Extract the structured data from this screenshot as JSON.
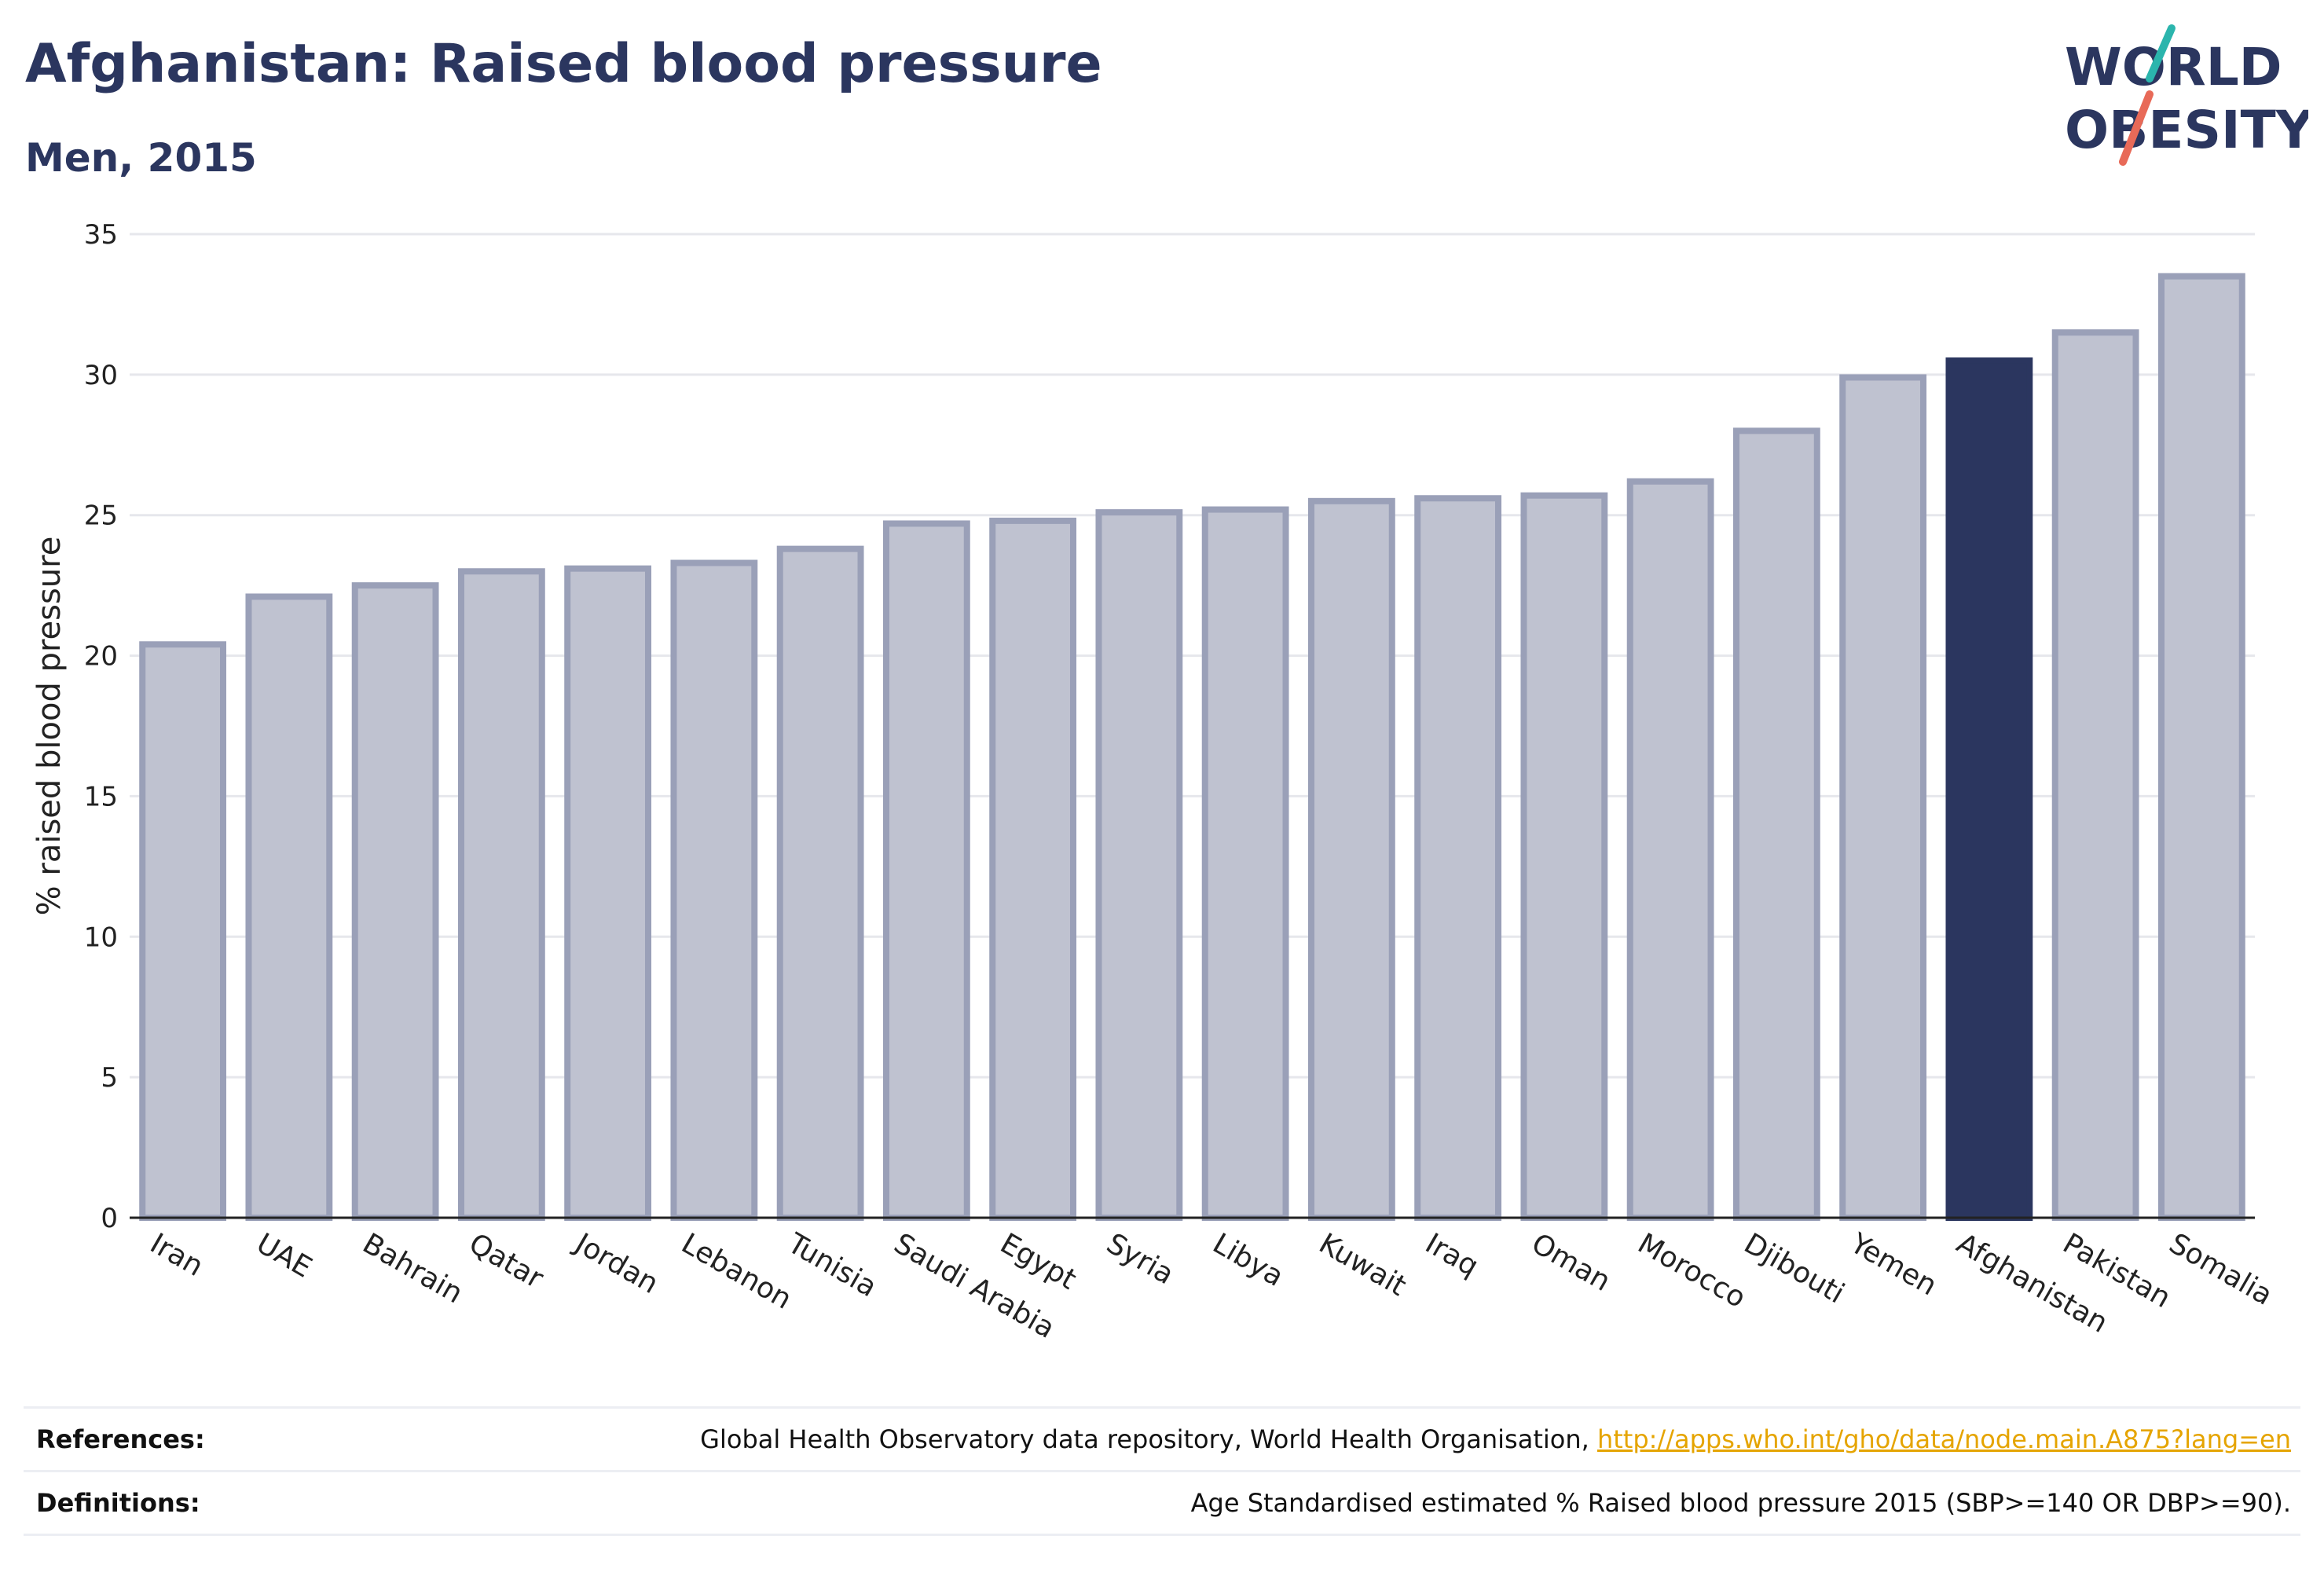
{
  "header": {
    "title": "Afghanistan: Raised blood pressure",
    "subtitle": "Men, 2015"
  },
  "logo": {
    "line1": "WORLD",
    "line2": "OBESITY",
    "accent_teal": "#2bb5ad",
    "accent_coral": "#e86a58",
    "text_color": "#2b365f"
  },
  "chart_data": {
    "type": "bar",
    "title": "Afghanistan: Raised blood pressure",
    "subtitle": "Men, 2015",
    "xlabel": "",
    "ylabel": "% raised blood pressure",
    "ylim": [
      0,
      35
    ],
    "yticks": [
      0,
      5,
      10,
      15,
      20,
      25,
      30,
      35
    ],
    "grid": true,
    "highlight": "Afghanistan",
    "colors": {
      "bar": "#bfc2d0",
      "bar_border": "#9aa0b8",
      "highlight": "#2b365f"
    },
    "categories": [
      "Iran",
      "UAE",
      "Bahrain",
      "Qatar",
      "Jordan",
      "Lebanon",
      "Tunisia",
      "Saudi Arabia",
      "Egypt",
      "Syria",
      "Libya",
      "Kuwait",
      "Iraq",
      "Oman",
      "Morocco",
      "Djibouti",
      "Yemen",
      "Afghanistan",
      "Pakistan",
      "Somalia"
    ],
    "values": [
      20.4,
      22.1,
      22.5,
      23.0,
      23.1,
      23.3,
      23.8,
      24.7,
      24.8,
      25.1,
      25.2,
      25.5,
      25.6,
      25.7,
      26.2,
      28.0,
      29.9,
      30.5,
      31.5,
      33.5
    ]
  },
  "footer": {
    "references_label": "References:",
    "references_text": "Global Health Observatory data repository, World Health Organisation,",
    "references_link": "http://apps.who.int/gho/data/node.main.A875?lang=en",
    "definitions_label": "Definitions:",
    "definitions_text": "Age Standardised estimated % Raised blood pressure 2015 (SBP>=140 OR DBP>=90)."
  }
}
